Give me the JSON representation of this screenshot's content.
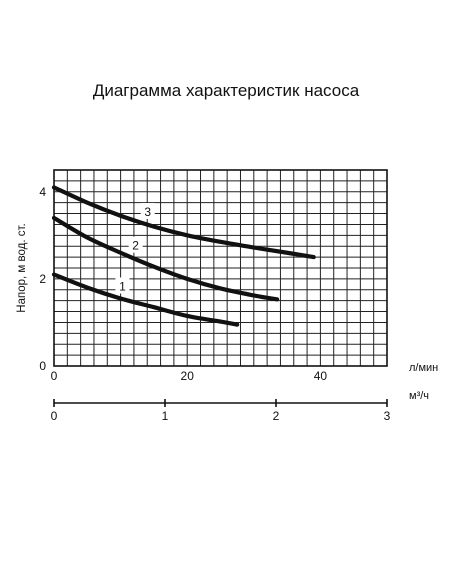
{
  "chart_data": {
    "type": "line",
    "title": "Диаграмма характеристик насоса",
    "ylabel": "Напор, м вод. ст.",
    "x_unit": "л/мин",
    "x2_unit": "м³/ч",
    "xlim": [
      0,
      50
    ],
    "ylim": [
      0,
      4.5
    ],
    "x2lim": [
      0,
      3
    ],
    "grid": true,
    "x_ticks": [
      0,
      20,
      40
    ],
    "y_ticks": [
      0,
      2,
      4
    ],
    "x2_ticks": [
      0,
      1,
      2,
      3
    ],
    "grid_x_step": 2,
    "grid_y_step": 0.25,
    "series": [
      {
        "name": "1",
        "x": [
          0,
          5,
          10,
          15,
          20,
          25,
          27.5
        ],
        "y": [
          2.1,
          1.8,
          1.55,
          1.35,
          1.15,
          1.02,
          0.95
        ]
      },
      {
        "name": "2",
        "x": [
          0,
          5,
          10,
          15,
          20,
          25,
          30,
          33.5
        ],
        "y": [
          3.4,
          2.95,
          2.6,
          2.28,
          2.0,
          1.78,
          1.62,
          1.53
        ]
      },
      {
        "name": "3",
        "x": [
          0,
          5,
          10,
          15,
          20,
          25,
          30,
          35,
          39
        ],
        "y": [
          4.1,
          3.75,
          3.45,
          3.2,
          3.0,
          2.85,
          2.72,
          2.6,
          2.5
        ]
      }
    ]
  }
}
